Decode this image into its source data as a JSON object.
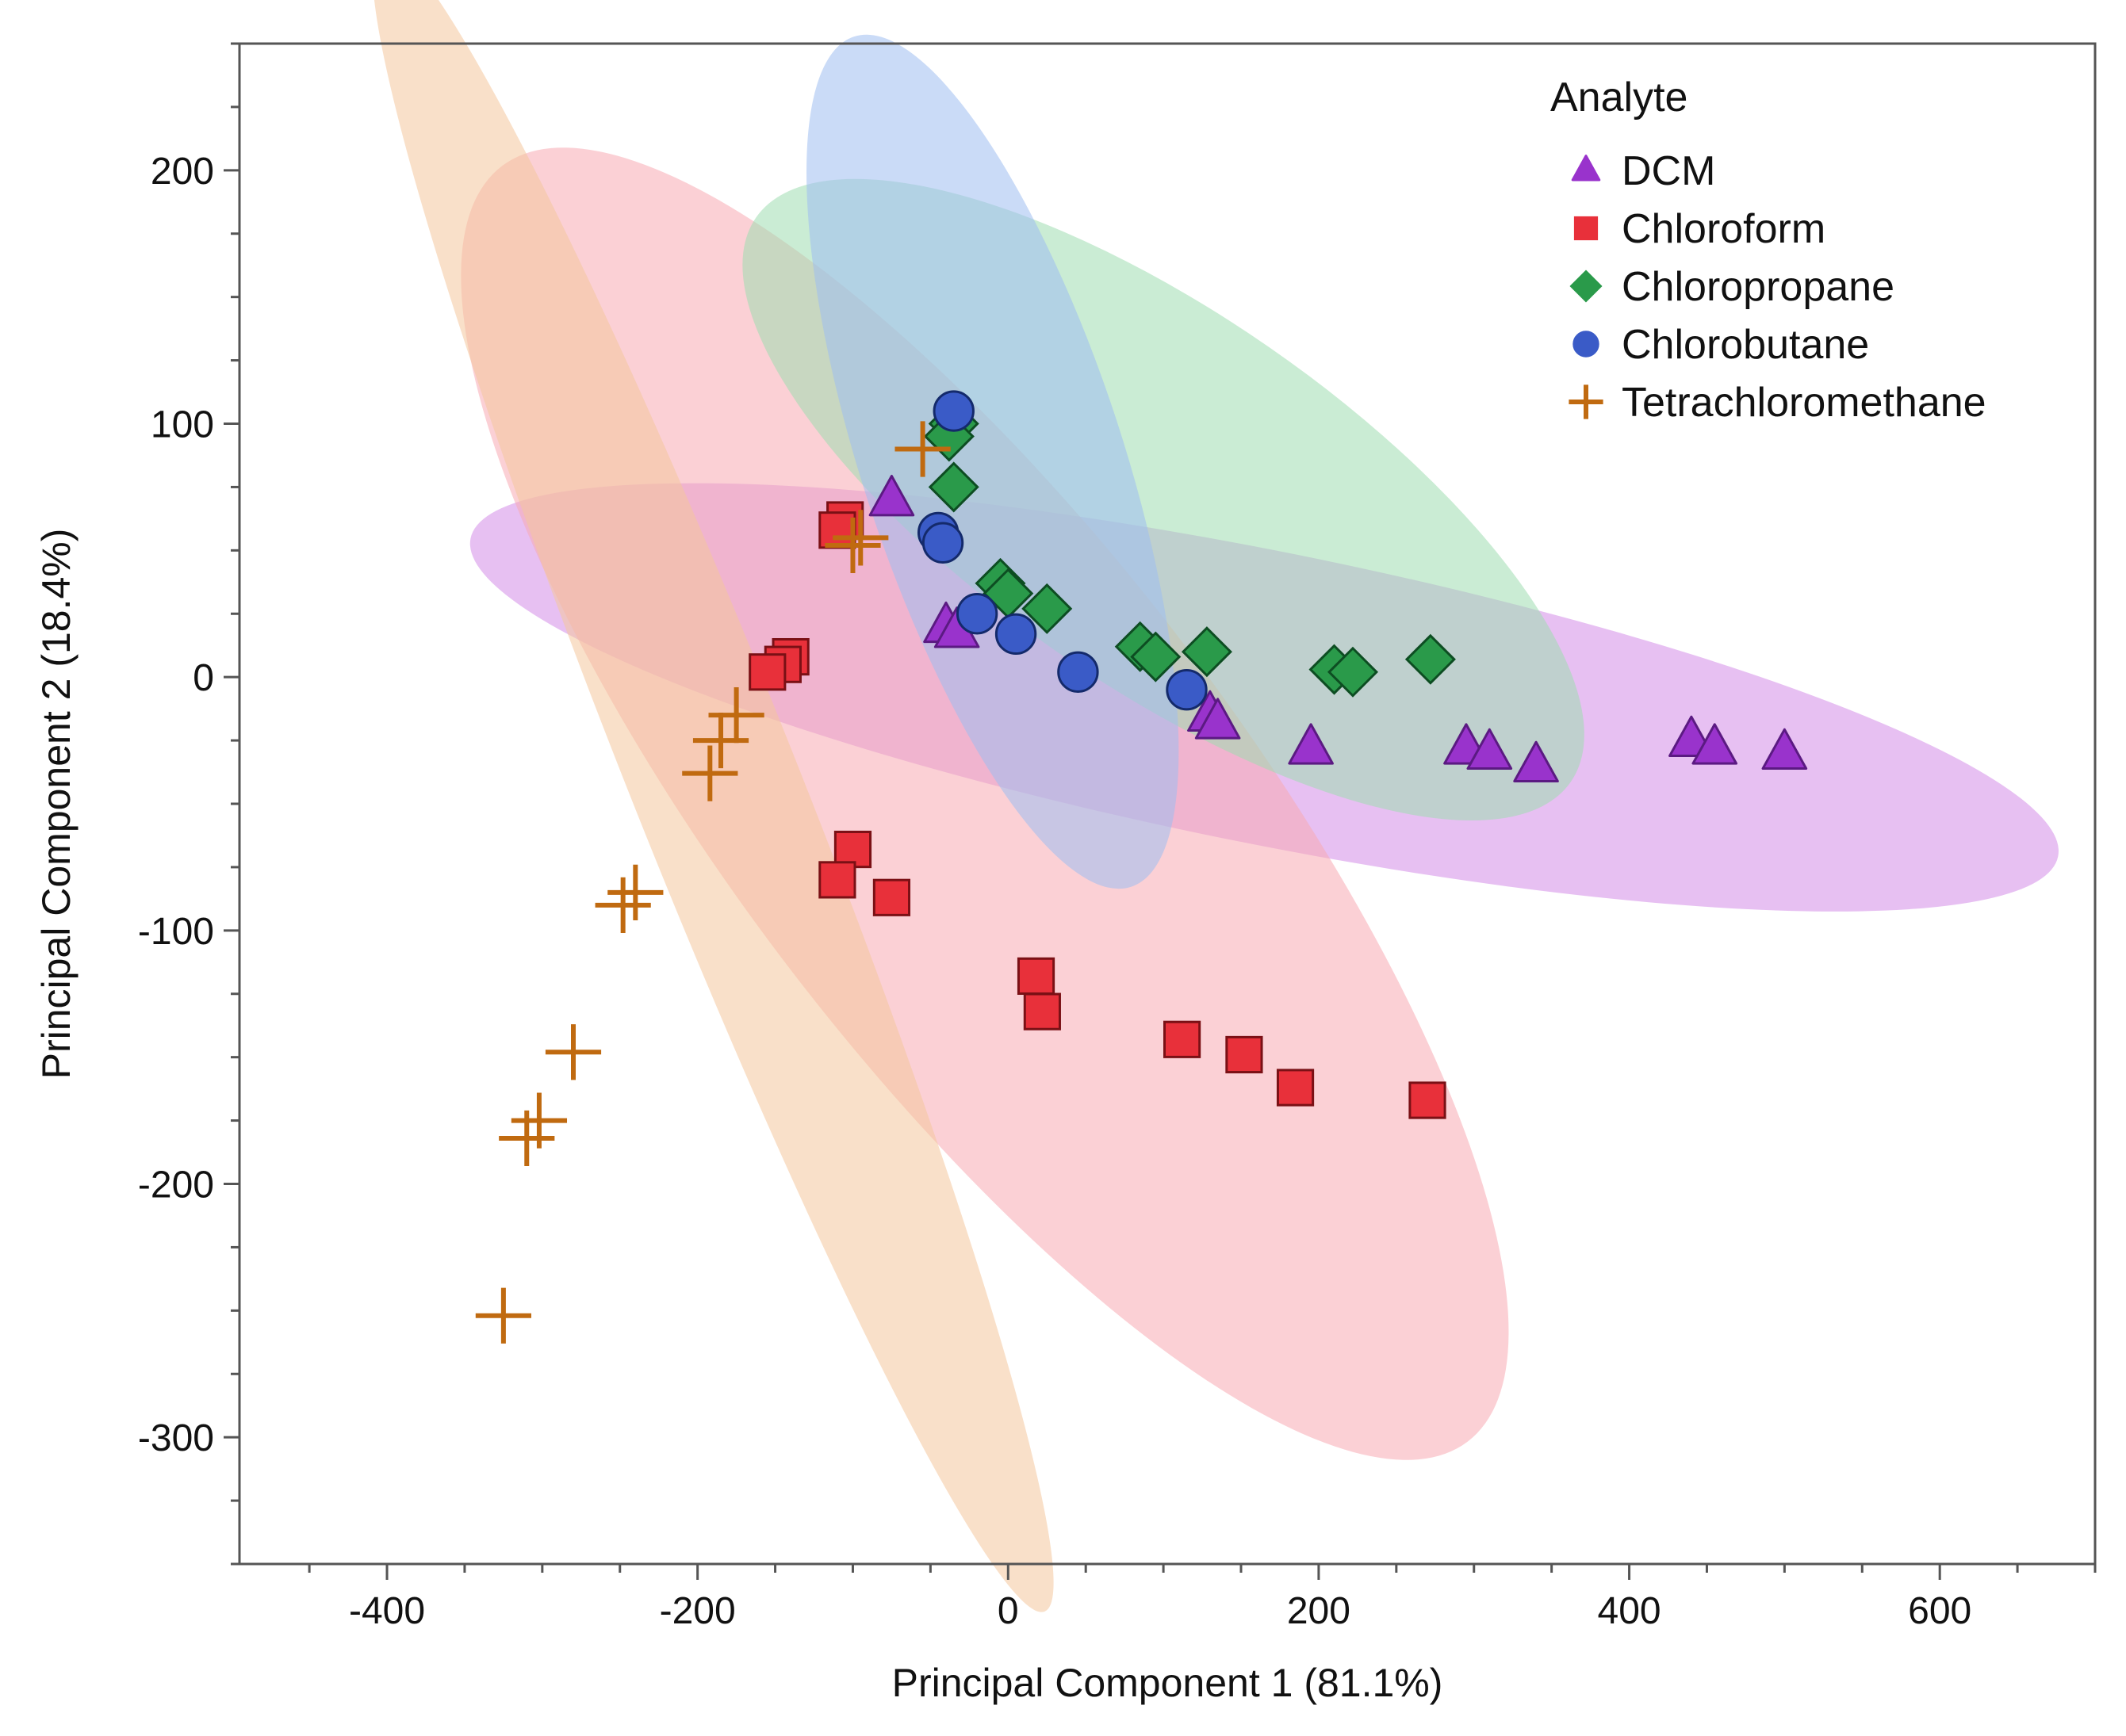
{
  "chart_data": {
    "type": "scatter",
    "title": "",
    "xlabel": "Principal Component 1 (81.1%)",
    "ylabel": "Principal Component 2 (18.4%)",
    "xlim": [
      -495,
      700
    ],
    "ylim": [
      -350,
      250
    ],
    "xticks": [
      -400,
      -200,
      0,
      200,
      400,
      600
    ],
    "yticks": [
      -300,
      -200,
      -100,
      0,
      100,
      200
    ],
    "grid": false,
    "legend_title": "Analyte",
    "legend_position": "top-right",
    "series": [
      {
        "name": "DCM",
        "marker": "triangle",
        "color": "#9933cc",
        "stroke": "#5b1a82",
        "points": [
          [
            -75,
            70
          ],
          [
            -40,
            20
          ],
          [
            -33,
            18
          ],
          [
            130,
            -15
          ],
          [
            135,
            -18
          ],
          [
            195,
            -28
          ],
          [
            295,
            -28
          ],
          [
            310,
            -30
          ],
          [
            340,
            -35
          ],
          [
            440,
            -25
          ],
          [
            455,
            -28
          ],
          [
            500,
            -30
          ]
        ],
        "ellipse": {
          "center": [
            165,
            -8
          ],
          "rx": 515,
          "ry": 58,
          "angle_deg": -7,
          "fill": "#d48ce8"
        }
      },
      {
        "name": "Chloroform",
        "marker": "square",
        "color": "#e8303a",
        "stroke": "#7a1015",
        "points": [
          [
            -105,
            62
          ],
          [
            -110,
            58
          ],
          [
            -140,
            8
          ],
          [
            -145,
            5
          ],
          [
            -155,
            2
          ],
          [
            -100,
            -68
          ],
          [
            -110,
            -80
          ],
          [
            -75,
            -87
          ],
          [
            18,
            -118
          ],
          [
            22,
            -132
          ],
          [
            112,
            -143
          ],
          [
            152,
            -149
          ],
          [
            185,
            -162
          ],
          [
            270,
            -167
          ]
        ],
        "ellipse": {
          "center": [
            -15,
            -50
          ],
          "rx": 400,
          "ry": 116,
          "angle_deg": -39,
          "fill": "#f7a9b3"
        }
      },
      {
        "name": "Chloropropane",
        "marker": "diamond",
        "color": "#2a9a4a",
        "stroke": "#0d4d22",
        "points": [
          [
            -35,
            100
          ],
          [
            -38,
            95
          ],
          [
            -35,
            75
          ],
          [
            -5,
            37
          ],
          [
            0,
            33
          ],
          [
            25,
            27
          ],
          [
            85,
            12
          ],
          [
            95,
            8
          ],
          [
            128,
            10
          ],
          [
            210,
            3
          ],
          [
            222,
            2
          ],
          [
            272,
            7
          ]
        ],
        "ellipse": {
          "center": [
            100,
            70
          ],
          "rx": 285,
          "ry": 77,
          "angle_deg": -23,
          "fill": "#9fdcb0"
        }
      },
      {
        "name": "Chlorobutane",
        "marker": "circle",
        "color": "#3a5bc7",
        "stroke": "#142a6b",
        "points": [
          [
            -35,
            105
          ],
          [
            -45,
            57
          ],
          [
            -42,
            53
          ],
          [
            -20,
            25
          ],
          [
            5,
            17
          ],
          [
            45,
            2
          ],
          [
            115,
            -5
          ]
        ],
        "ellipse": {
          "center": [
            -10,
            85
          ],
          "rx": 190,
          "ry": 72,
          "angle_deg": -62,
          "fill": "#9fbef0"
        }
      },
      {
        "name": "Tetrachloromethane",
        "marker": "plus",
        "color": "#c06a10",
        "stroke": "#1a1208",
        "points": [
          [
            -55,
            90
          ],
          [
            -95,
            55
          ],
          [
            -100,
            52
          ],
          [
            -175,
            -15
          ],
          [
            -185,
            -25
          ],
          [
            -192,
            -38
          ],
          [
            -240,
            -85
          ],
          [
            -248,
            -90
          ],
          [
            -280,
            -148
          ],
          [
            -302,
            -175
          ],
          [
            -310,
            -182
          ],
          [
            -325,
            -252
          ]
        ],
        "ellipse": {
          "center": [
            -190,
            -40
          ],
          "rx": 392,
          "ry": 44,
          "angle_deg": -57,
          "fill": "#f4c69c"
        }
      }
    ]
  }
}
